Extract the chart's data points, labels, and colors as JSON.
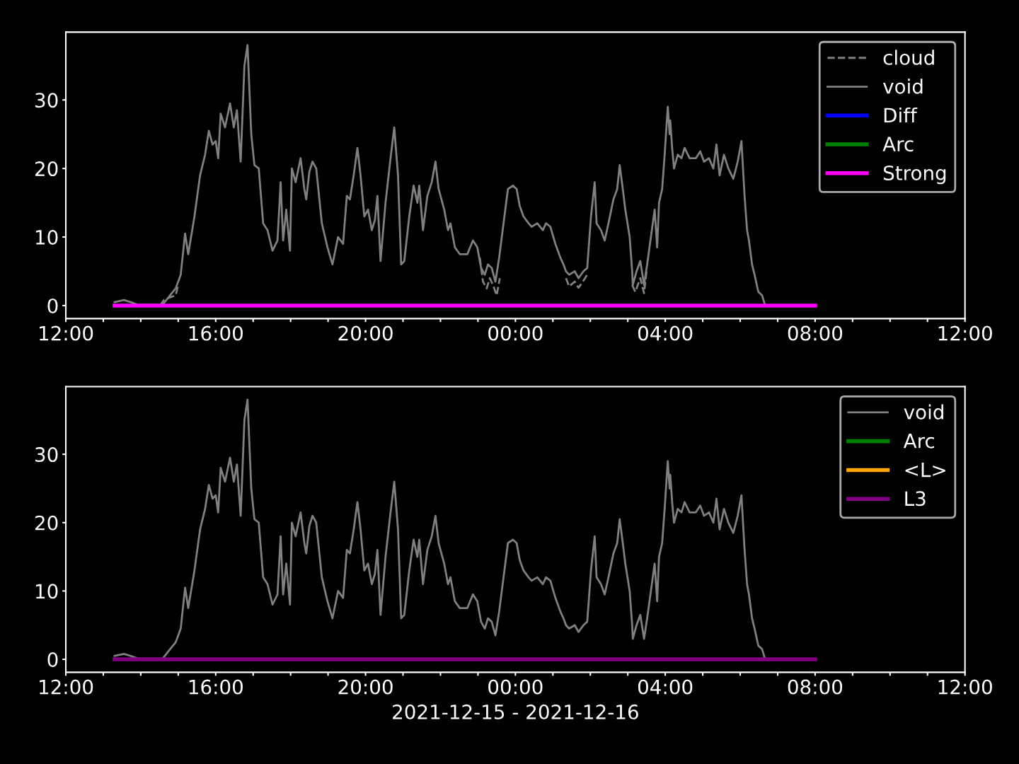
{
  "chart_data": [
    {
      "type": "line",
      "xlim": [
        "2021-12-15T12:00",
        "2021-12-16T12:00"
      ],
      "ylim": [
        -1.9,
        39.9
      ],
      "yticks": [
        0,
        10,
        20,
        30
      ],
      "xticks": [
        {
          "value": "2021-12-15T12:00",
          "label": "12:00"
        },
        {
          "value": "2021-12-15T13:00",
          "label": null
        },
        {
          "value": "2021-12-15T14:00",
          "label": null
        },
        {
          "value": "2021-12-15T15:00",
          "label": null
        },
        {
          "value": "2021-12-15T16:00",
          "label": "16:00"
        },
        {
          "value": "2021-12-15T17:00",
          "label": null
        },
        {
          "value": "2021-12-15T18:00",
          "label": null
        },
        {
          "value": "2021-12-15T19:00",
          "label": null
        },
        {
          "value": "2021-12-15T20:00",
          "label": "20:00"
        },
        {
          "value": "2021-12-15T21:00",
          "label": null
        },
        {
          "value": "2021-12-15T22:00",
          "label": null
        },
        {
          "value": "2021-12-15T23:00",
          "label": null
        },
        {
          "value": "2021-12-16T00:00",
          "label": "00:00"
        },
        {
          "value": "2021-12-16T01:00",
          "label": null
        },
        {
          "value": "2021-12-16T02:00",
          "label": null
        },
        {
          "value": "2021-12-16T03:00",
          "label": null
        },
        {
          "value": "2021-12-16T04:00",
          "label": "04:00"
        },
        {
          "value": "2021-12-16T05:00",
          "label": null
        },
        {
          "value": "2021-12-16T06:00",
          "label": null
        },
        {
          "value": "2021-12-16T07:00",
          "label": null
        },
        {
          "value": "2021-12-16T08:00",
          "label": "08:00"
        },
        {
          "value": "2021-12-16T09:00",
          "label": null
        },
        {
          "value": "2021-12-16T10:00",
          "label": null
        },
        {
          "value": "2021-12-16T11:00",
          "label": null
        },
        {
          "value": "2021-12-16T12:00",
          "label": "12:00"
        }
      ],
      "legend": "top right",
      "grid": false,
      "series": [
        {
          "name": "cloud",
          "color": "#808080",
          "line_style": "dashed",
          "x": [
            "2021-12-15T14:31",
            "2021-12-15T14:37",
            "2021-12-15T14:47",
            "2021-12-15T14:56",
            "2021-12-15T15:00",
            "2021-12-15T20:00",
            "2021-12-15T23:03",
            "2021-12-15T23:08",
            "2021-12-15T23:14",
            "2021-12-15T23:19",
            "2021-12-15T23:24",
            "2021-12-15T23:30",
            "2021-12-15T23:35",
            "2021-12-16T00:30",
            "2021-12-16T01:21",
            "2021-12-16T01:26",
            "2021-12-16T01:35",
            "2021-12-16T01:41",
            "2021-12-16T01:48",
            "2021-12-16T01:55",
            "2021-12-16T02:30",
            "2021-12-16T03:07",
            "2021-12-16T03:12",
            "2021-12-16T03:20",
            "2021-12-16T03:26",
            "2021-12-16T03:30"
          ],
          "values": [
            0,
            0.8,
            1.2,
            1.5,
            3.0,
            null,
            7,
            3.5,
            2.5,
            4,
            3,
            1.5,
            4,
            null,
            4,
            2.8,
            3.5,
            2.6,
            3.5,
            4.5,
            null,
            3,
            2,
            4,
            1.8,
            5
          ]
        },
        {
          "name": "void",
          "color": "#808080",
          "line_style": "solid",
          "x": [
            "2021-12-15T13:18",
            "2021-12-15T13:33",
            "2021-12-15T13:44",
            "2021-12-15T13:56",
            "2021-12-15T14:35",
            "2021-12-15T14:47",
            "2021-12-15T14:56",
            "2021-12-15T15:04",
            "2021-12-15T15:11",
            "2021-12-15T15:16",
            "2021-12-15T15:26",
            "2021-12-15T15:35",
            "2021-12-15T15:43",
            "2021-12-15T15:49",
            "2021-12-15T15:55",
            "2021-12-15T16:00",
            "2021-12-15T16:04",
            "2021-12-15T16:08",
            "2021-12-15T16:15",
            "2021-12-15T16:23",
            "2021-12-15T16:29",
            "2021-12-15T16:34",
            "2021-12-15T16:40",
            "2021-12-15T16:46",
            "2021-12-15T16:51",
            "2021-12-15T16:57",
            "2021-12-15T17:02",
            "2021-12-15T17:09",
            "2021-12-15T17:16",
            "2021-12-15T17:23",
            "2021-12-15T17:31",
            "2021-12-15T17:39",
            "2021-12-15T17:44",
            "2021-12-15T17:48",
            "2021-12-15T17:53",
            "2021-12-15T17:59",
            "2021-12-15T18:02",
            "2021-12-15T18:08",
            "2021-12-15T18:16",
            "2021-12-15T18:22",
            "2021-12-15T18:25",
            "2021-12-15T18:30",
            "2021-12-15T18:35",
            "2021-12-15T18:41",
            "2021-12-15T18:50",
            "2021-12-15T18:59",
            "2021-12-15T19:07",
            "2021-12-15T19:16",
            "2021-12-15T19:24",
            "2021-12-15T19:30",
            "2021-12-15T19:35",
            "2021-12-15T19:41",
            "2021-12-15T19:47",
            "2021-12-15T19:52",
            "2021-12-15T19:58",
            "2021-12-15T20:04",
            "2021-12-15T20:10",
            "2021-12-15T20:15",
            "2021-12-15T20:19",
            "2021-12-15T20:24",
            "2021-12-15T20:32",
            "2021-12-15T20:40",
            "2021-12-15T20:46",
            "2021-12-15T20:52",
            "2021-12-15T20:57",
            "2021-12-15T21:02",
            "2021-12-15T21:10",
            "2021-12-15T21:17",
            "2021-12-15T21:23",
            "2021-12-15T21:26",
            "2021-12-15T21:32",
            "2021-12-15T21:39",
            "2021-12-15T21:46",
            "2021-12-15T21:52",
            "2021-12-15T21:57",
            "2021-12-15T22:06",
            "2021-12-15T22:12",
            "2021-12-15T22:16",
            "2021-12-15T22:23",
            "2021-12-15T22:31",
            "2021-12-15T22:43",
            "2021-12-15T22:52",
            "2021-12-15T22:59",
            "2021-12-15T23:05",
            "2021-12-15T23:11",
            "2021-12-15T23:16",
            "2021-12-15T23:22",
            "2021-12-15T23:28",
            "2021-12-15T23:34",
            "2021-12-15T23:41",
            "2021-12-15T23:48",
            "2021-12-15T23:56",
            "2021-12-16T00:02",
            "2021-12-16T00:07",
            "2021-12-16T00:13",
            "2021-12-16T00:21",
            "2021-12-16T00:26",
            "2021-12-16T00:35",
            "2021-12-16T00:44",
            "2021-12-16T00:49",
            "2021-12-16T00:56",
            "2021-12-16T01:04",
            "2021-12-16T01:12",
            "2021-12-16T01:17",
            "2021-12-16T01:21",
            "2021-12-16T01:26",
            "2021-12-16T01:35",
            "2021-12-16T01:41",
            "2021-12-16T01:49",
            "2021-12-16T01:55",
            "2021-12-16T02:01",
            "2021-12-16T02:07",
            "2021-12-16T02:10",
            "2021-12-16T02:17",
            "2021-12-16T02:23",
            "2021-12-16T02:29",
            "2021-12-16T02:37",
            "2021-12-16T02:43",
            "2021-12-16T02:47",
            "2021-12-16T02:52",
            "2021-12-16T02:56",
            "2021-12-16T03:03",
            "2021-12-16T03:07",
            "2021-12-16T03:08",
            "2021-12-16T03:14",
            "2021-12-16T03:20",
            "2021-12-16T03:26",
            "2021-12-16T03:31",
            "2021-12-16T03:37",
            "2021-12-16T03:43",
            "2021-12-16T03:47",
            "2021-12-16T03:50",
            "2021-12-16T03:55",
            "2021-12-16T03:59",
            "2021-12-16T04:04",
            "2021-12-16T04:07",
            "2021-12-16T04:08",
            "2021-12-16T04:11",
            "2021-12-16T04:14",
            "2021-12-16T04:20",
            "2021-12-16T04:26",
            "2021-12-16T04:31",
            "2021-12-16T04:39",
            "2021-12-16T04:49",
            "2021-12-16T04:56",
            "2021-12-16T05:02",
            "2021-12-16T05:10",
            "2021-12-16T05:17",
            "2021-12-16T05:22",
            "2021-12-16T05:27",
            "2021-12-16T05:34",
            "2021-12-16T05:41",
            "2021-12-16T05:49",
            "2021-12-16T05:56",
            "2021-12-16T06:02",
            "2021-12-16T06:07",
            "2021-12-16T06:11",
            "2021-12-16T06:14",
            "2021-12-16T06:19",
            "2021-12-16T06:23",
            "2021-12-16T06:29",
            "2021-12-16T06:35",
            "2021-12-16T06:40"
          ],
          "values": [
            0.5,
            0.8,
            0.5,
            0.1,
            0.1,
            1.5,
            2.5,
            4.5,
            10.5,
            7.5,
            13,
            19,
            22,
            25.5,
            23.5,
            24,
            21.5,
            28,
            26,
            29.5,
            26,
            28.5,
            21,
            35,
            38,
            25,
            20.5,
            20,
            12,
            11,
            8,
            9.5,
            18,
            9.5,
            14,
            8,
            20,
            18,
            21.5,
            17,
            15.5,
            19.5,
            21,
            20,
            12,
            8.5,
            6,
            10,
            9,
            16,
            15.5,
            19,
            23,
            19,
            13,
            14,
            11,
            12.5,
            16,
            6.5,
            15,
            21.5,
            26,
            19,
            6,
            6.5,
            13,
            17.5,
            15,
            17.5,
            11,
            16,
            18,
            21,
            17,
            14,
            11,
            12,
            8.5,
            7.5,
            7.5,
            9.5,
            8.5,
            5.5,
            4.5,
            6,
            5.5,
            3.5,
            7,
            12,
            17,
            17.5,
            17,
            14.5,
            13,
            12,
            11.5,
            12,
            11,
            12,
            11.5,
            9,
            7,
            6,
            5,
            4.5,
            5,
            4,
            5,
            5.5,
            13,
            18,
            12,
            11,
            9.5,
            12,
            15.5,
            17,
            20.5,
            17,
            14,
            10,
            5,
            3,
            5,
            6.5,
            3,
            6,
            10,
            14,
            8.5,
            15,
            17,
            22,
            29,
            25,
            27,
            23,
            20,
            22,
            21.5,
            23,
            21.5,
            21.5,
            22.5,
            21,
            21.5,
            20,
            23.5,
            19,
            22,
            20,
            18.5,
            21,
            24,
            16,
            11,
            9.5,
            6,
            4.5,
            2,
            1.5,
            0
          ]
        },
        {
          "name": "Diff",
          "color": "#0000ff",
          "line_style": "solid"
        },
        {
          "name": "Arc",
          "color": "#008000",
          "line_style": "solid"
        },
        {
          "name": "Strong",
          "color": "#ff00ff",
          "line_style": "solid",
          "x": [
            "2021-12-15T13:18",
            "2021-12-16T08:00"
          ],
          "values": [
            0,
            0
          ]
        }
      ]
    },
    {
      "type": "line",
      "xlim": [
        "2021-12-15T12:00",
        "2021-12-16T12:00"
      ],
      "ylim": [
        -1.9,
        39.9
      ],
      "yticks": [
        0,
        10,
        20,
        30
      ],
      "xlabel": "2021-12-15 - 2021-12-16",
      "xticks": [
        {
          "value": "2021-12-15T12:00",
          "label": "12:00"
        },
        {
          "value": "2021-12-15T13:00",
          "label": null
        },
        {
          "value": "2021-12-15T14:00",
          "label": null
        },
        {
          "value": "2021-12-15T15:00",
          "label": null
        },
        {
          "value": "2021-12-15T16:00",
          "label": "16:00"
        },
        {
          "value": "2021-12-15T17:00",
          "label": null
        },
        {
          "value": "2021-12-15T18:00",
          "label": null
        },
        {
          "value": "2021-12-15T19:00",
          "label": null
        },
        {
          "value": "2021-12-15T20:00",
          "label": "20:00"
        },
        {
          "value": "2021-12-15T21:00",
          "label": null
        },
        {
          "value": "2021-12-15T22:00",
          "label": null
        },
        {
          "value": "2021-12-15T23:00",
          "label": null
        },
        {
          "value": "2021-12-16T00:00",
          "label": "00:00"
        },
        {
          "value": "2021-12-16T01:00",
          "label": null
        },
        {
          "value": "2021-12-16T02:00",
          "label": null
        },
        {
          "value": "2021-12-16T03:00",
          "label": null
        },
        {
          "value": "2021-12-16T04:00",
          "label": "04:00"
        },
        {
          "value": "2021-12-16T05:00",
          "label": null
        },
        {
          "value": "2021-12-16T06:00",
          "label": null
        },
        {
          "value": "2021-12-16T07:00",
          "label": null
        },
        {
          "value": "2021-12-16T08:00",
          "label": "08:00"
        },
        {
          "value": "2021-12-16T09:00",
          "label": null
        },
        {
          "value": "2021-12-16T10:00",
          "label": null
        },
        {
          "value": "2021-12-16T11:00",
          "label": null
        },
        {
          "value": "2021-12-16T12:00",
          "label": "12:00"
        }
      ],
      "legend": "top right",
      "grid": false,
      "series": [
        {
          "name": "void",
          "color": "#808080",
          "line_style": "solid",
          "x": [
            "2021-12-15T13:18",
            "2021-12-15T13:33",
            "2021-12-15T13:44",
            "2021-12-15T13:56",
            "2021-12-15T14:35",
            "2021-12-15T14:47",
            "2021-12-15T14:56",
            "2021-12-15T15:04",
            "2021-12-15T15:11",
            "2021-12-15T15:16",
            "2021-12-15T15:26",
            "2021-12-15T15:35",
            "2021-12-15T15:43",
            "2021-12-15T15:49",
            "2021-12-15T15:55",
            "2021-12-15T16:00",
            "2021-12-15T16:04",
            "2021-12-15T16:08",
            "2021-12-15T16:15",
            "2021-12-15T16:23",
            "2021-12-15T16:29",
            "2021-12-15T16:34",
            "2021-12-15T16:40",
            "2021-12-15T16:46",
            "2021-12-15T16:51",
            "2021-12-15T16:57",
            "2021-12-15T17:02",
            "2021-12-15T17:09",
            "2021-12-15T17:16",
            "2021-12-15T17:23",
            "2021-12-15T17:31",
            "2021-12-15T17:39",
            "2021-12-15T17:44",
            "2021-12-15T17:48",
            "2021-12-15T17:53",
            "2021-12-15T17:59",
            "2021-12-15T18:02",
            "2021-12-15T18:08",
            "2021-12-15T18:16",
            "2021-12-15T18:22",
            "2021-12-15T18:25",
            "2021-12-15T18:30",
            "2021-12-15T18:35",
            "2021-12-15T18:41",
            "2021-12-15T18:50",
            "2021-12-15T18:59",
            "2021-12-15T19:07",
            "2021-12-15T19:16",
            "2021-12-15T19:24",
            "2021-12-15T19:30",
            "2021-12-15T19:35",
            "2021-12-15T19:41",
            "2021-12-15T19:47",
            "2021-12-15T19:52",
            "2021-12-15T19:58",
            "2021-12-15T20:04",
            "2021-12-15T20:10",
            "2021-12-15T20:15",
            "2021-12-15T20:19",
            "2021-12-15T20:24",
            "2021-12-15T20:32",
            "2021-12-15T20:40",
            "2021-12-15T20:46",
            "2021-12-15T20:52",
            "2021-12-15T20:57",
            "2021-12-15T21:02",
            "2021-12-15T21:10",
            "2021-12-15T21:17",
            "2021-12-15T21:23",
            "2021-12-15T21:26",
            "2021-12-15T21:32",
            "2021-12-15T21:39",
            "2021-12-15T21:46",
            "2021-12-15T21:52",
            "2021-12-15T21:57",
            "2021-12-15T22:06",
            "2021-12-15T22:12",
            "2021-12-15T22:16",
            "2021-12-15T22:23",
            "2021-12-15T22:31",
            "2021-12-15T22:43",
            "2021-12-15T22:52",
            "2021-12-15T22:59",
            "2021-12-15T23:05",
            "2021-12-15T23:11",
            "2021-12-15T23:16",
            "2021-12-15T23:22",
            "2021-12-15T23:28",
            "2021-12-15T23:34",
            "2021-12-15T23:41",
            "2021-12-15T23:48",
            "2021-12-15T23:56",
            "2021-12-16T00:02",
            "2021-12-16T00:07",
            "2021-12-16T00:13",
            "2021-12-16T00:21",
            "2021-12-16T00:26",
            "2021-12-16T00:35",
            "2021-12-16T00:44",
            "2021-12-16T00:49",
            "2021-12-16T00:56",
            "2021-12-16T01:04",
            "2021-12-16T01:12",
            "2021-12-16T01:17",
            "2021-12-16T01:21",
            "2021-12-16T01:26",
            "2021-12-16T01:35",
            "2021-12-16T01:41",
            "2021-12-16T01:49",
            "2021-12-16T01:55",
            "2021-12-16T02:01",
            "2021-12-16T02:07",
            "2021-12-16T02:10",
            "2021-12-16T02:17",
            "2021-12-16T02:23",
            "2021-12-16T02:29",
            "2021-12-16T02:37",
            "2021-12-16T02:43",
            "2021-12-16T02:47",
            "2021-12-16T02:52",
            "2021-12-16T02:56",
            "2021-12-16T03:03",
            "2021-12-16T03:07",
            "2021-12-16T03:08",
            "2021-12-16T03:14",
            "2021-12-16T03:20",
            "2021-12-16T03:26",
            "2021-12-16T03:31",
            "2021-12-16T03:37",
            "2021-12-16T03:43",
            "2021-12-16T03:47",
            "2021-12-16T03:50",
            "2021-12-16T03:55",
            "2021-12-16T03:59",
            "2021-12-16T04:04",
            "2021-12-16T04:07",
            "2021-12-16T04:08",
            "2021-12-16T04:11",
            "2021-12-16T04:14",
            "2021-12-16T04:20",
            "2021-12-16T04:26",
            "2021-12-16T04:31",
            "2021-12-16T04:39",
            "2021-12-16T04:49",
            "2021-12-16T04:56",
            "2021-12-16T05:02",
            "2021-12-16T05:10",
            "2021-12-16T05:17",
            "2021-12-16T05:22",
            "2021-12-16T05:27",
            "2021-12-16T05:34",
            "2021-12-16T05:41",
            "2021-12-16T05:49",
            "2021-12-16T05:56",
            "2021-12-16T06:02",
            "2021-12-16T06:07",
            "2021-12-16T06:11",
            "2021-12-16T06:14",
            "2021-12-16T06:19",
            "2021-12-16T06:23",
            "2021-12-16T06:29",
            "2021-12-16T06:35",
            "2021-12-16T06:40"
          ],
          "values": [
            0.5,
            0.8,
            0.5,
            0.1,
            0.1,
            1.5,
            2.5,
            4.5,
            10.5,
            7.5,
            13,
            19,
            22,
            25.5,
            23.5,
            24,
            21.5,
            28,
            26,
            29.5,
            26,
            28.5,
            21,
            35,
            38,
            25,
            20.5,
            20,
            12,
            11,
            8,
            9.5,
            18,
            9.5,
            14,
            8,
            20,
            18,
            21.5,
            17,
            15.5,
            19.5,
            21,
            20,
            12,
            8.5,
            6,
            10,
            9,
            16,
            15.5,
            19,
            23,
            19,
            13,
            14,
            11,
            12.5,
            16,
            6.5,
            15,
            21.5,
            26,
            19,
            6,
            6.5,
            13,
            17.5,
            15,
            17.5,
            11,
            16,
            18,
            21,
            17,
            14,
            11,
            12,
            8.5,
            7.5,
            7.5,
            9.5,
            8.5,
            5.5,
            4.5,
            6,
            5.5,
            3.5,
            7,
            12,
            17,
            17.5,
            17,
            14.5,
            13,
            12,
            11.5,
            12,
            11,
            12,
            11.5,
            9,
            7,
            6,
            5,
            4.5,
            5,
            4,
            5,
            5.5,
            13,
            18,
            12,
            11,
            9.5,
            12,
            15.5,
            17,
            20.5,
            17,
            14,
            10,
            5,
            3,
            5,
            6.5,
            3,
            6,
            10,
            14,
            8.5,
            15,
            17,
            22,
            29,
            25,
            27,
            23,
            20,
            22,
            21.5,
            23,
            21.5,
            21.5,
            22.5,
            21,
            21.5,
            20,
            23.5,
            19,
            22,
            20,
            18.5,
            21,
            24,
            16,
            11,
            9.5,
            6,
            4.5,
            2,
            1.5,
            0
          ]
        },
        {
          "name": "Arc",
          "color": "#008000",
          "line_style": "solid"
        },
        {
          "name": "<L>",
          "color": "#ffa500",
          "line_style": "solid"
        },
        {
          "name": "L3",
          "color": "#800080",
          "line_style": "solid",
          "x": [
            "2021-12-15T13:18",
            "2021-12-16T08:00"
          ],
          "values": [
            0,
            0
          ]
        }
      ]
    }
  ]
}
